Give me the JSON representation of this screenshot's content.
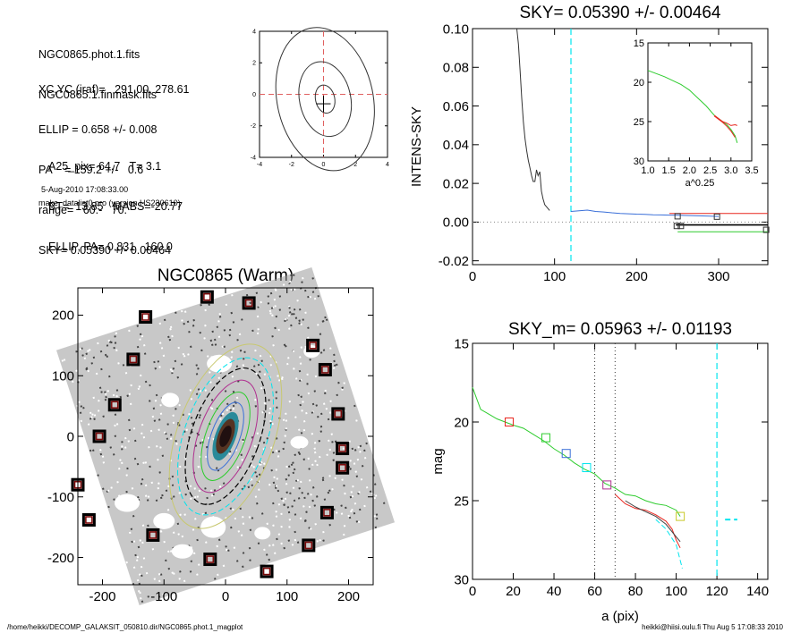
{
  "info": {
    "files": [
      "NGC0865.phot.1.fits",
      "NGC0865.1.finmask.fits"
    ],
    "params": [
      "XC,YC (iraf)=   291.00, 278.61",
      "ELLIP = 0.658 +/- 0.008",
      "PA    = 159.2 +/-   0.6",
      "range=   60.-   70.",
      "SKY= 0.05390 +/- 0.00464"
    ],
    "derived": [
      "A25_pix= 64.7   T= 3.1",
      "BT=  13.85   MABS=-20.77",
      "ELLIP, PA= 0.831   160.0"
    ],
    "date": "5-Aug-2010 17:08:33.00",
    "program": "make_datalist0.pro (version HS230610)"
  },
  "footer": {
    "left": "/home/heikki/DECOMP_GALAKSIT_050810.dir/NGC0865.phot.1_magplot",
    "right": "heikki@hiisi.oulu.fi  Thu Aug  5 17:08:33 2010"
  },
  "colors": {
    "cyan": "#00e5ee",
    "red": "#e8261f",
    "green": "#2ecc2e",
    "blue": "#3a6fd8",
    "yellow": "#c9c928",
    "magenta": "#b03090",
    "mark": "#7a0a0a"
  },
  "chart_data": [
    {
      "id": "contour",
      "type": "line",
      "xlim": [
        -4,
        4
      ],
      "ylim": [
        -4,
        4
      ],
      "xticks": [
        "-4",
        "-2",
        "0",
        "2",
        "4"
      ],
      "yticks": [
        "-4",
        "-2",
        "0",
        "2",
        "4"
      ],
      "center": [
        0,
        0
      ]
    },
    {
      "id": "sky",
      "type": "line",
      "title": "SKY= 0.05390 +/- 0.00464",
      "ylabel": "INTENS-SKY",
      "xlim": [
        0,
        360
      ],
      "ylim": [
        -0.022,
        0.1
      ],
      "xticks": [
        "0",
        "100",
        "200",
        "300"
      ],
      "yticks": [
        "-0.02",
        "0.00",
        "0.02",
        "0.04",
        "0.06",
        "0.08",
        "0.10"
      ],
      "vline": 120,
      "series": [
        {
          "x": [
            54,
            56,
            58,
            60,
            62,
            64,
            66,
            68,
            70,
            72,
            74,
            76,
            78,
            80,
            82,
            84,
            86,
            88,
            90,
            92,
            94
          ],
          "y": [
            0.1,
            0.092,
            0.078,
            0.064,
            0.052,
            0.043,
            0.037,
            0.032,
            0.028,
            0.024,
            0.021,
            0.021,
            0.027,
            0.024,
            0.026,
            0.016,
            0.012,
            0.009,
            0.008,
            0.007,
            0.006
          ]
        },
        {
          "x": [
            120,
            130,
            140,
            150,
            160,
            170,
            180,
            190,
            200,
            210,
            220,
            230,
            240,
            250,
            260,
            270,
            280,
            290,
            300
          ],
          "y": [
            0.0055,
            0.0058,
            0.0062,
            0.0055,
            0.0052,
            0.0048,
            0.0045,
            0.0043,
            0.0041,
            0.004,
            0.0038,
            0.0037,
            0.0036,
            0.0035,
            0.0034,
            0.0033,
            0.0032,
            0.0031,
            0.0029
          ]
        },
        {
          "x": [
            240,
            360
          ],
          "y": [
            0.0045,
            0.0045
          ]
        },
        {
          "x": [
            248,
            360
          ],
          "y": [
            -0.0015,
            -0.0015
          ]
        },
        {
          "x": [
            250,
            360
          ],
          "y": [
            -0.005,
            -0.005
          ]
        }
      ],
      "markers": [
        {
          "x": 250,
          "y": 0.003
        },
        {
          "x": 298,
          "y": 0.0028
        },
        {
          "x": 249,
          "y": -0.002
        },
        {
          "x": 254,
          "y": -0.002
        },
        {
          "x": 358,
          "y": -0.004
        }
      ],
      "inset": {
        "xlabel": "a^0.25",
        "xlim": [
          1.0,
          3.5
        ],
        "ylim": [
          30,
          15
        ],
        "xticks": [
          "1.0",
          "1.5",
          "2.0",
          "2.5",
          "3.0",
          "3.5"
        ],
        "yticks": [
          "15",
          "20",
          "25",
          "30"
        ],
        "series": [
          {
            "x": [
              1.0,
              1.4,
              1.8,
              2.0,
              2.2,
              2.4,
              2.6,
              2.8,
              2.9,
              3.0,
              3.1,
              3.15
            ],
            "y": [
              18.5,
              19.3,
              20.3,
              21.0,
              22.0,
              23.0,
              24.2,
              25.0,
              25.4,
              26.0,
              26.8,
              27.7
            ]
          },
          {
            "x": [
              2.6,
              2.8,
              2.9,
              3.0,
              3.1,
              3.15
            ],
            "y": [
              24.2,
              25.0,
              25.2,
              25.5,
              25.4,
              25.5
            ]
          },
          {
            "x": [
              2.6,
              2.8,
              2.9,
              3.0,
              3.1
            ],
            "y": [
              24.3,
              25.1,
              25.6,
              26.2,
              27.0
            ]
          }
        ]
      }
    },
    {
      "id": "image",
      "type": "scatter",
      "title": "NGC0865 (Warm)",
      "xlim": [
        -240,
        240
      ],
      "ylim": [
        -245,
        245
      ],
      "xticks": [
        "-200",
        "-100",
        "0",
        "100",
        "200"
      ],
      "yticks": [
        "-200",
        "-100",
        "0",
        "100",
        "200"
      ],
      "masks": [
        [
          -30,
          230
        ],
        [
          38,
          220
        ],
        [
          -130,
          197
        ],
        [
          142,
          150
        ],
        [
          -150,
          127
        ],
        [
          162,
          110
        ],
        [
          -180,
          52
        ],
        [
          183,
          37
        ],
        [
          -205,
          0
        ],
        [
          190,
          -20
        ],
        [
          190,
          -52
        ],
        [
          -240,
          -80
        ],
        [
          165,
          -126
        ],
        [
          -222,
          -138
        ],
        [
          -118,
          -163
        ],
        [
          135,
          -180
        ],
        [
          -25,
          -203
        ],
        [
          67,
          -223
        ]
      ]
    },
    {
      "id": "mag",
      "type": "line",
      "title": "SKY_m=  0.05963 +/- 0.01193",
      "xlabel": "a (pix)",
      "ylabel": "mag",
      "xlim": [
        0,
        145
      ],
      "ylim": [
        30,
        15
      ],
      "xticks": [
        "0",
        "20",
        "40",
        "60",
        "80",
        "100",
        "120",
        "140"
      ],
      "yticks": [
        "15",
        "20",
        "25",
        "30"
      ],
      "vlines_dotted": [
        60,
        70
      ],
      "vline_dashed": 120,
      "series": [
        {
          "x": [
            0,
            4,
            8,
            12,
            16,
            20,
            25,
            30,
            35,
            40,
            45,
            50,
            55,
            60,
            65,
            70,
            75,
            80,
            85,
            90,
            95,
            100,
            102
          ],
          "y": [
            17.8,
            19.2,
            19.5,
            19.8,
            20.0,
            20.2,
            20.4,
            20.8,
            21.2,
            21.7,
            22.1,
            22.6,
            23.0,
            23.3,
            23.9,
            24.2,
            24.6,
            24.7,
            25.0,
            25.2,
            25.3,
            25.6,
            26.0
          ]
        },
        {
          "x": [
            70,
            75,
            80,
            85,
            90,
            95,
            98,
            100,
            102
          ],
          "y": [
            24.6,
            25.2,
            25.5,
            25.6,
            25.9,
            26.3,
            26.8,
            27.5,
            28.0
          ]
        },
        {
          "x": [
            75,
            80,
            85,
            90,
            95,
            100,
            102
          ],
          "y": [
            25.0,
            25.4,
            25.7,
            26.0,
            26.5,
            27.3,
            27.6
          ]
        },
        {
          "x": [
            90,
            95,
            100,
            103
          ],
          "y": [
            26.2,
            26.8,
            27.8,
            29.3
          ]
        }
      ],
      "sky_segment": {
        "x": [
          124,
          130
        ],
        "y": 26.2
      },
      "markers": [
        {
          "x": 18,
          "y": 20.0,
          "c": "red"
        },
        {
          "x": 36,
          "y": 21.0,
          "c": "green"
        },
        {
          "x": 46,
          "y": 22.0,
          "c": "blue"
        },
        {
          "x": 56,
          "y": 22.9,
          "c": "cyan"
        },
        {
          "x": 66,
          "y": 24.0,
          "c": "magenta"
        },
        {
          "x": 102,
          "y": 26.0,
          "c": "yellow"
        }
      ]
    }
  ]
}
